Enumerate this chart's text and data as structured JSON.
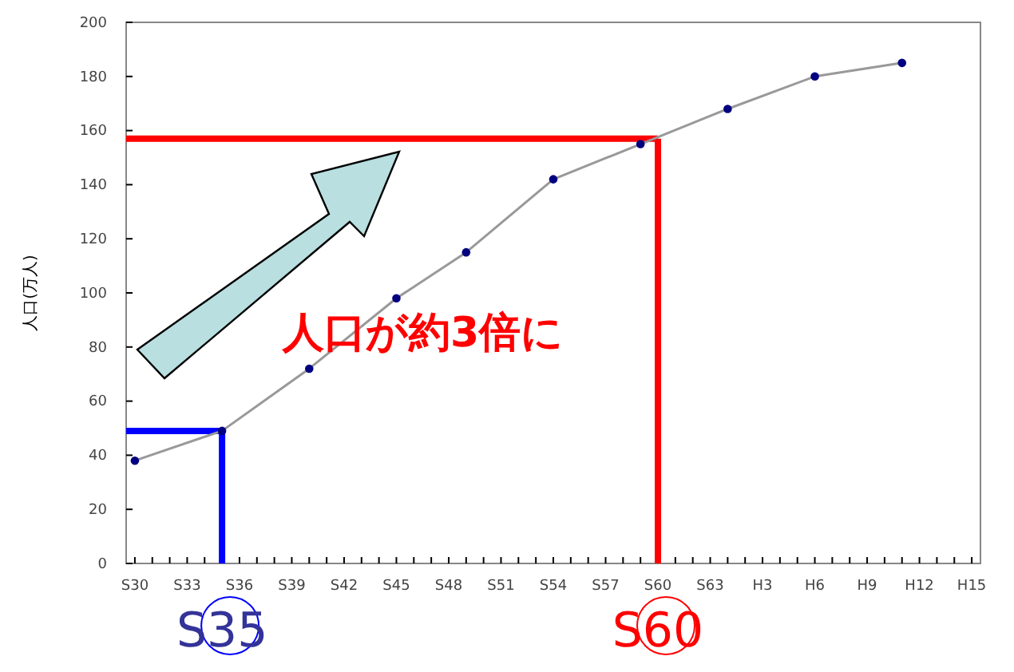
{
  "chart_data": {
    "type": "line",
    "ylabel": "人口(万人)",
    "categories": [
      "S30",
      null,
      null,
      "S33",
      null,
      null,
      "S36",
      null,
      null,
      "S39",
      null,
      null,
      "S42",
      null,
      null,
      "S45",
      null,
      null,
      "S48",
      null,
      null,
      "S51",
      null,
      null,
      "S54",
      null,
      null,
      "S57",
      null,
      null,
      "S60",
      null,
      null,
      "S63",
      null,
      null,
      "H3",
      null,
      null,
      "H6",
      null,
      null,
      "H9",
      null,
      null,
      "H12",
      null,
      null,
      "H15"
    ],
    "series": [
      {
        "color": "#000080",
        "values": [
          38,
          null,
          null,
          null,
          null,
          49,
          null,
          null,
          null,
          null,
          72,
          null,
          null,
          null,
          null,
          98,
          null,
          null,
          null,
          115,
          null,
          null,
          null,
          null,
          142,
          null,
          null,
          null,
          null,
          155,
          null,
          null,
          null,
          null,
          168,
          null,
          null,
          null,
          null,
          180,
          null,
          null,
          null,
          null,
          185,
          null,
          null,
          null,
          null
        ]
      }
    ],
    "ylim": [
      0,
      200
    ],
    "yticks": [
      0,
      20,
      40,
      60,
      80,
      100,
      120,
      140,
      160,
      180,
      200
    ],
    "marker": "circle",
    "grid": false,
    "ref_lines": [
      {
        "axis": "y",
        "value": 49,
        "color": "#0000ff"
      },
      {
        "axis": "y",
        "value": 157,
        "color": "#ff0000"
      },
      {
        "axis": "x",
        "value": "S60",
        "label": "S60",
        "color": "#ff0000"
      }
    ],
    "annotations": [
      "人口が約3倍に",
      {
        "text": "S35",
        "y": 49
      }
    ]
  }
}
